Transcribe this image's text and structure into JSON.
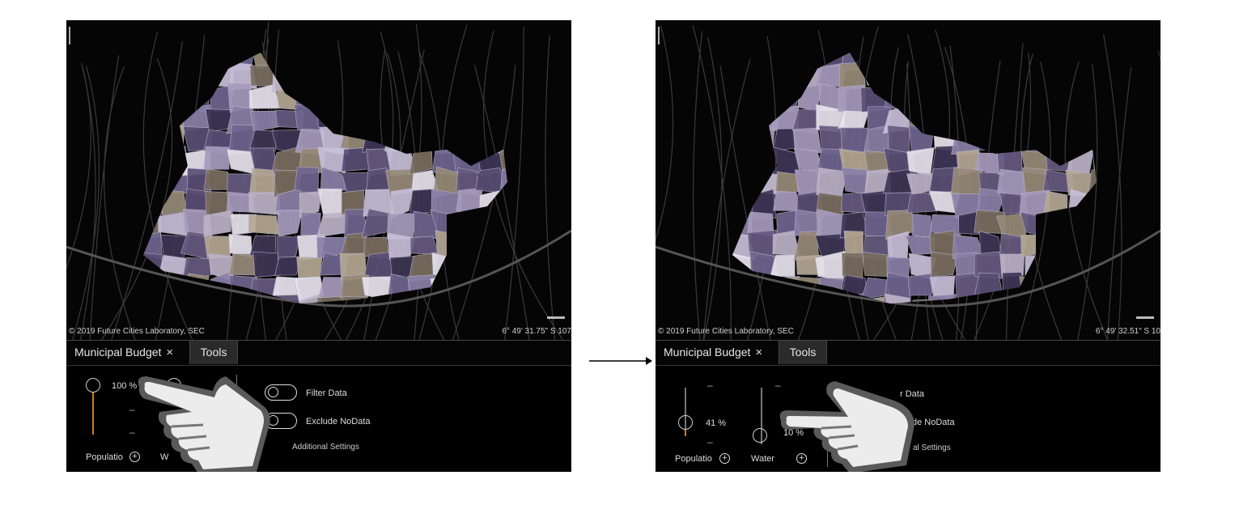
{
  "left_panel": {
    "attribution": "© 2019 Future Cities Laboratory, SEC",
    "coords": "6° 49' 31.75\" S  107",
    "tabs": {
      "municipal_budget": "Municipal Budget",
      "close": "×",
      "tools": "Tools"
    },
    "sliders": {
      "population": {
        "percent": "100 %",
        "label": "Populatio",
        "value_fraction": 1.0
      },
      "water": {
        "label": "W",
        "value_fraction": 1.0
      }
    },
    "toggles": {
      "filter_data": "Filter Data",
      "exclude_nodata": "Exclude NoData"
    },
    "additional_settings": "Additional Settings",
    "dash": "–"
  },
  "right_panel": {
    "attribution": "© 2019 Future Cities Laboratory, SEC",
    "coords": "6° 49' 32.51\" S  10",
    "tabs": {
      "municipal_budget": "Municipal Budget",
      "close": "×",
      "tools": "Tools"
    },
    "sliders": {
      "population": {
        "percent": "41 %",
        "label": "Populatio",
        "value_fraction": 0.41
      },
      "water": {
        "percent": "10 %",
        "label": "Water",
        "value_fraction": 0.1
      }
    },
    "toggles": {
      "filter_data": "r Data",
      "exclude_nodata": "de NoData"
    },
    "additional_settings": "al Settings",
    "dash": "–"
  },
  "colors": {
    "slider_track_active": "#d47a1e",
    "map_background": "#050505",
    "region_palette": [
      "#8a80a8",
      "#6f6590",
      "#a69bbd",
      "#c8bfd8",
      "#5a4f75",
      "#978a78",
      "#7a6e60",
      "#bcb3c7",
      "#e8e4ee",
      "#3d3656",
      "#b5a894",
      "#665b80"
    ]
  },
  "icons": {
    "plus": "plus-circle-icon",
    "hand": "pointing-hand-icon",
    "arrow": "right-arrow-icon"
  }
}
